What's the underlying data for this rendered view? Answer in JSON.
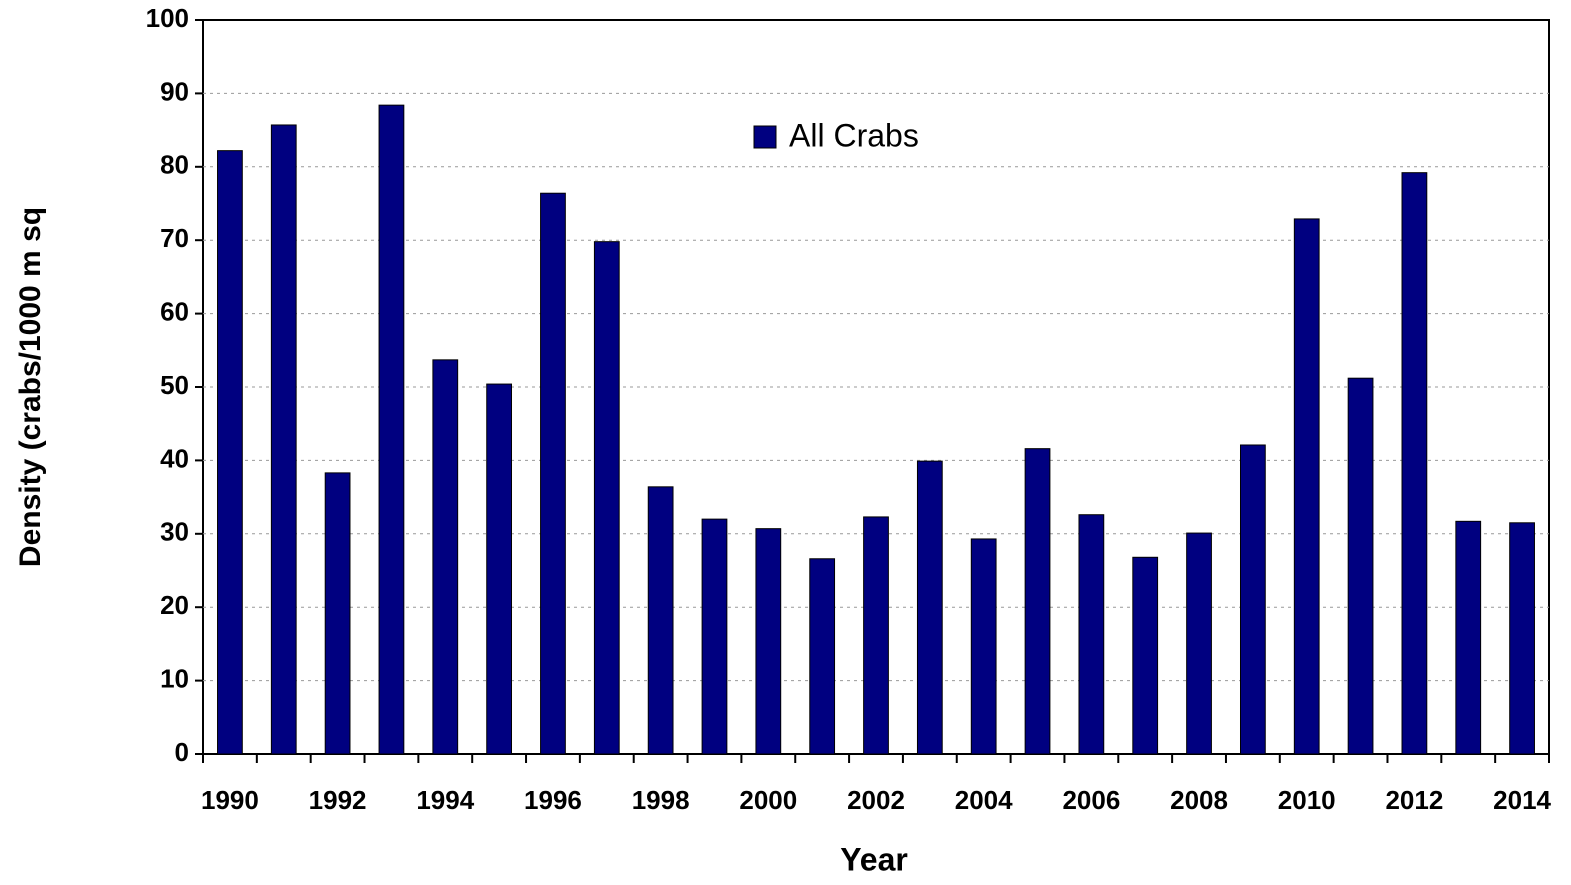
{
  "chart_data": {
    "type": "bar",
    "x_label": "Year",
    "y_label": "Density (crabs/1000 m sq",
    "categories": [
      "1990",
      null,
      "1992",
      null,
      "1994",
      null,
      "1996",
      null,
      "1998",
      null,
      "2000",
      null,
      "2002",
      null,
      "2004",
      null,
      "2006",
      null,
      "2008",
      null,
      "2010",
      null,
      "2012",
      null,
      "2014"
    ],
    "series": [
      {
        "name": "All Crabs",
        "color": "#000080",
        "values": [
          82.2,
          85.7,
          38.3,
          88.4,
          53.7,
          50.4,
          76.4,
          69.8,
          36.4,
          32.0,
          30.7,
          26.6,
          32.3,
          39.9,
          29.3,
          41.6,
          32.6,
          26.8,
          30.1,
          42.1,
          72.9,
          51.2,
          79.2,
          31.7,
          31.5
        ]
      }
    ],
    "ylim": [
      0,
      100
    ],
    "yticks": [
      0,
      10,
      20,
      30,
      40,
      50,
      60,
      70,
      80,
      90,
      100
    ],
    "grid": true,
    "legend": "upper center"
  }
}
